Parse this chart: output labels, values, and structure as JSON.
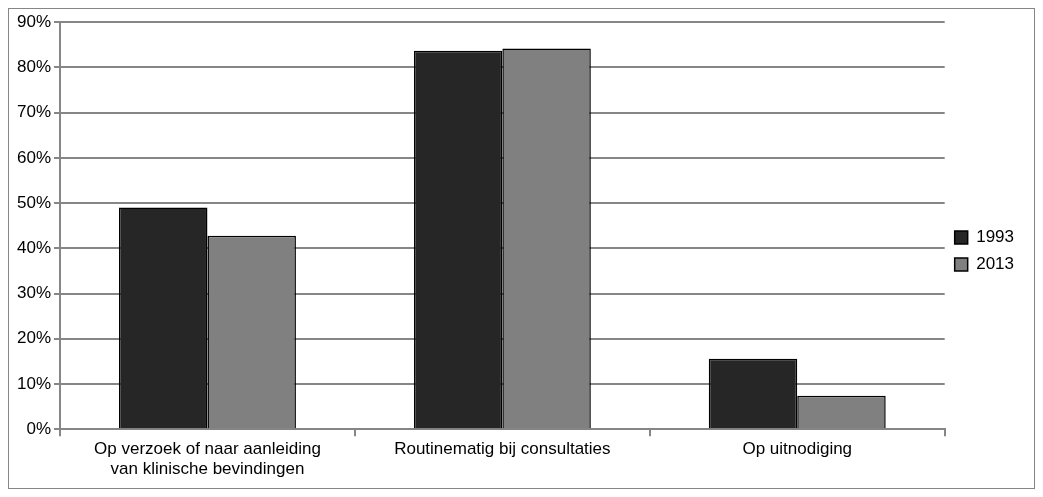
{
  "chart_data": {
    "type": "bar",
    "categories": [
      "Op verzoek of naar aanleiding van klinische bevindingen",
      "Routinematig bij consultaties",
      "Op uitnodiging"
    ],
    "series": [
      {
        "name": "1993",
        "color": "#262626",
        "values": [
          49,
          83.7,
          15.6
        ]
      },
      {
        "name": "2013",
        "color": "#808080",
        "values": [
          42.8,
          84.2,
          7.4
        ]
      }
    ],
    "ylim": [
      0,
      90
    ],
    "yticks": [
      {
        "value": 0,
        "label": "0%"
      },
      {
        "value": 10,
        "label": "10%"
      },
      {
        "value": 20,
        "label": "20%"
      },
      {
        "value": 30,
        "label": "30%"
      },
      {
        "value": 40,
        "label": "40%"
      },
      {
        "value": 50,
        "label": "50%"
      },
      {
        "value": 60,
        "label": "60%"
      },
      {
        "value": 70,
        "label": "70%"
      },
      {
        "value": 80,
        "label": "80%"
      },
      {
        "value": 90,
        "label": "90%"
      }
    ],
    "grid": "y",
    "legend": "right"
  }
}
